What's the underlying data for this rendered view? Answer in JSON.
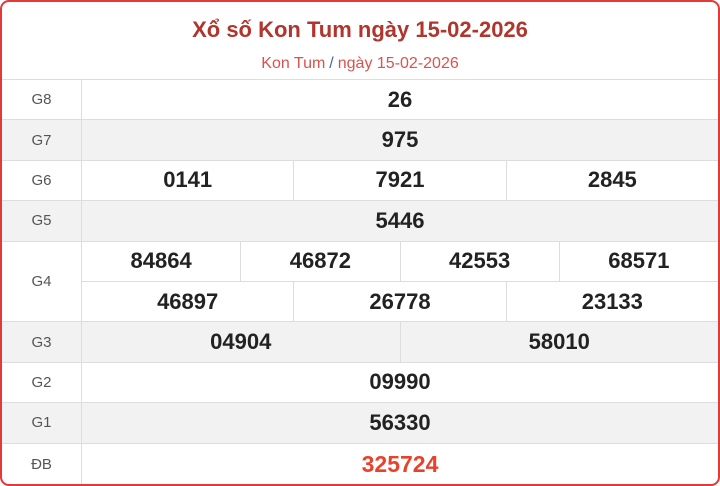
{
  "header": {
    "title": "Xổ số Kon Tum ngày 15-02-2026",
    "breadcrumb": {
      "province": "Kon Tum",
      "separator": "/",
      "date": "ngày 15-02-2026"
    }
  },
  "colors": {
    "border": "#e03a3a",
    "title": "#b0352c",
    "special": "#e8412c"
  },
  "prizes": [
    {
      "label": "G8",
      "lines": [
        [
          "26"
        ]
      ]
    },
    {
      "label": "G7",
      "lines": [
        [
          "975"
        ]
      ]
    },
    {
      "label": "G6",
      "lines": [
        [
          "0141",
          "7921",
          "2845"
        ]
      ]
    },
    {
      "label": "G5",
      "lines": [
        [
          "5446"
        ]
      ]
    },
    {
      "label": "G4",
      "lines": [
        [
          "84864",
          "46872",
          "42553",
          "68571"
        ],
        [
          "46897",
          "26778",
          "23133"
        ]
      ]
    },
    {
      "label": "G3",
      "lines": [
        [
          "04904",
          "58010"
        ]
      ]
    },
    {
      "label": "G2",
      "lines": [
        [
          "09990"
        ]
      ]
    },
    {
      "label": "G1",
      "lines": [
        [
          "56330"
        ]
      ]
    },
    {
      "label": "ĐB",
      "lines": [
        [
          "325724"
        ]
      ]
    }
  ]
}
